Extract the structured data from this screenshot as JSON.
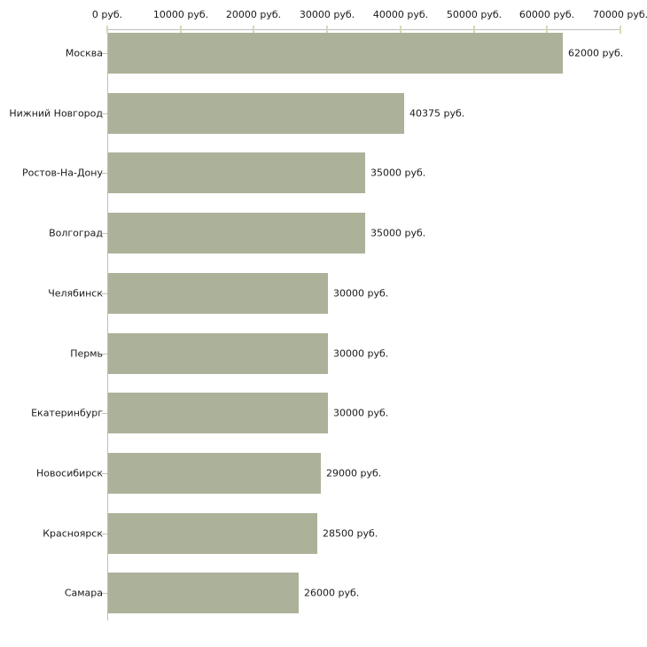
{
  "chart_data": {
    "type": "bar",
    "orientation": "horizontal",
    "title": "",
    "categories": [
      "Москва",
      "Нижний Новгород",
      "Ростов-На-Дону",
      "Волгоград",
      "Челябинск",
      "Пермь",
      "Екатеринбург",
      "Новосибирск",
      "Красноярск",
      "Самара"
    ],
    "values": [
      62000,
      40375,
      35000,
      35000,
      30000,
      30000,
      30000,
      29000,
      28500,
      26000
    ],
    "value_labels": [
      "62000 руб.",
      "40375 руб.",
      "35000 руб.",
      "35000 руб.",
      "30000 руб.",
      "30000 руб.",
      "30000 руб.",
      "29000 руб.",
      "28500 руб.",
      "26000 руб."
    ],
    "x_ticks": [
      0,
      10000,
      20000,
      30000,
      40000,
      50000,
      60000,
      70000
    ],
    "x_tick_labels": [
      "0 руб.",
      "10000 руб.",
      "20000 руб.",
      "30000 руб.",
      "40000 руб.",
      "50000 руб.",
      "60000 руб.",
      "70000 руб."
    ],
    "xlim": [
      0,
      70000
    ],
    "unit": "руб.",
    "grid": false,
    "legend": null,
    "colors": {
      "bar": "#acb299",
      "axis": "#bebebe",
      "x_tick": "#d6d8b5",
      "y_tick": "#c2c2b0",
      "text": "#1a1a1a",
      "background": "#ffffff"
    }
  }
}
